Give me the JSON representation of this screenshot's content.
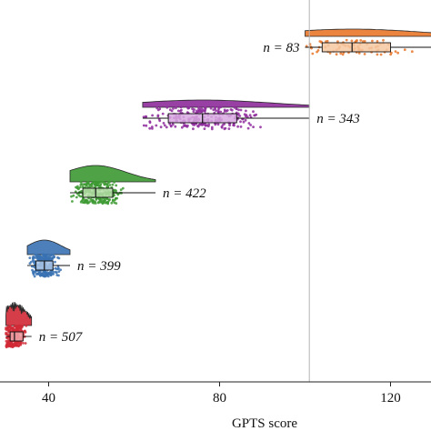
{
  "chart_data": {
    "type": "raincloud",
    "xlabel": "GPTS score",
    "ylabel": "",
    "xlim": [
      30,
      130
    ],
    "x_ticks": [
      40,
      80,
      120
    ],
    "tick_labels": [
      "40",
      "80",
      "120"
    ],
    "reference_line_x": 101,
    "groups": [
      {
        "n_label": "n = 83",
        "n": 83,
        "min": 100,
        "q1": 104,
        "median": 111,
        "q3": 120,
        "max": 130,
        "color": "#e8772b",
        "fill": "#f6c8a2"
      },
      {
        "n_label": "n = 343",
        "n": 343,
        "min": 62,
        "q1": 68,
        "median": 76,
        "q3": 84,
        "max": 101,
        "color": "#8e2c9c",
        "fill": "#d8a9e0"
      },
      {
        "n_label": "n = 422",
        "n": 422,
        "min": 45,
        "q1": 48,
        "median": 51,
        "q3": 55,
        "max": 65,
        "color": "#3d9a32",
        "fill": "#b4dca6"
      },
      {
        "n_label": "n = 399",
        "n": 399,
        "min": 35,
        "q1": 37,
        "median": 39,
        "q3": 41,
        "max": 45,
        "color": "#3a72b3",
        "fill": "#aac6e6"
      },
      {
        "n_label": "n = 507",
        "n": 507,
        "min": 30,
        "q1": 31,
        "median": 32,
        "q3": 34,
        "max": 36,
        "color": "#d12a36",
        "fill": "#f0a7ac"
      }
    ]
  },
  "colors": {
    "reference_line": "#b5b5b5",
    "axis": "#222222"
  }
}
